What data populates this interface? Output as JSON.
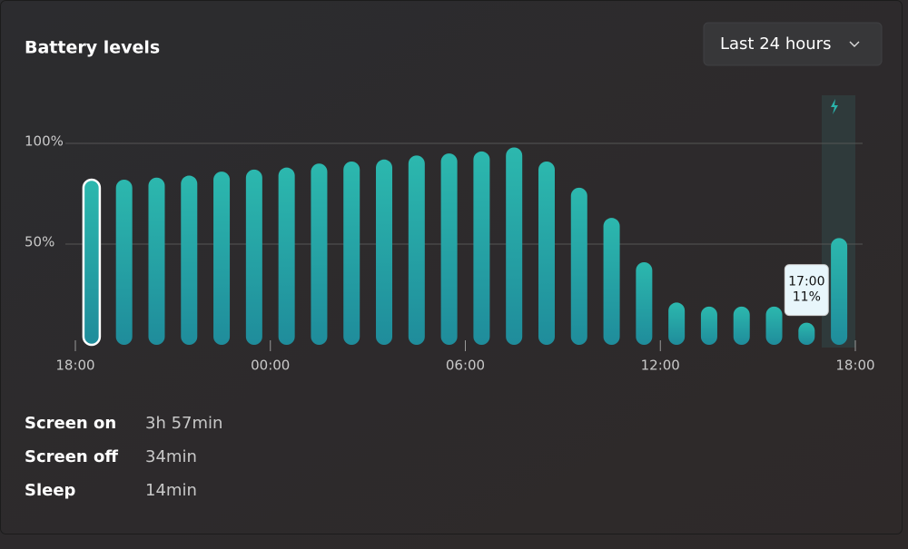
{
  "header": {
    "title": "Battery levels",
    "dropdown": "Last 24 hours"
  },
  "chart_data": {
    "type": "bar",
    "x": [
      0.5,
      1.5,
      2.5,
      3.5,
      4.5,
      5.5,
      6.5,
      7.5,
      8.5,
      9.5,
      10.5,
      11.5,
      12.5,
      13.5,
      14.5,
      15.5,
      16.5,
      17.5,
      18.5,
      19.5,
      20.5,
      21.5,
      22.5,
      23.5
    ],
    "values": [
      82,
      82,
      83,
      84,
      86,
      87,
      88,
      90,
      91,
      92,
      94,
      95,
      96,
      98,
      91,
      78,
      63,
      41,
      21,
      19,
      19,
      19,
      11,
      53
    ],
    "color": "#2ab3ab",
    "xlim": [
      0,
      24
    ],
    "xticks": [
      {
        "value": 0,
        "label": "18:00"
      },
      {
        "value": 6,
        "label": "00:00"
      },
      {
        "value": 12,
        "label": "06:00"
      },
      {
        "value": 18,
        "label": "12:00"
      },
      {
        "value": 24,
        "label": "18:00"
      }
    ],
    "ylim": [
      0,
      100
    ],
    "yticks": [
      {
        "value": 50,
        "label": "50%"
      },
      {
        "value": 100,
        "label": "100%"
      }
    ],
    "grid": true,
    "tooltip": {
      "title": "17:00",
      "text": "11%"
    }
  },
  "stats": [
    {
      "label": "Screen on",
      "value": "3h 57min"
    },
    {
      "label": "Screen off",
      "value": "34min"
    },
    {
      "label": "Sleep",
      "value": "14min"
    }
  ]
}
